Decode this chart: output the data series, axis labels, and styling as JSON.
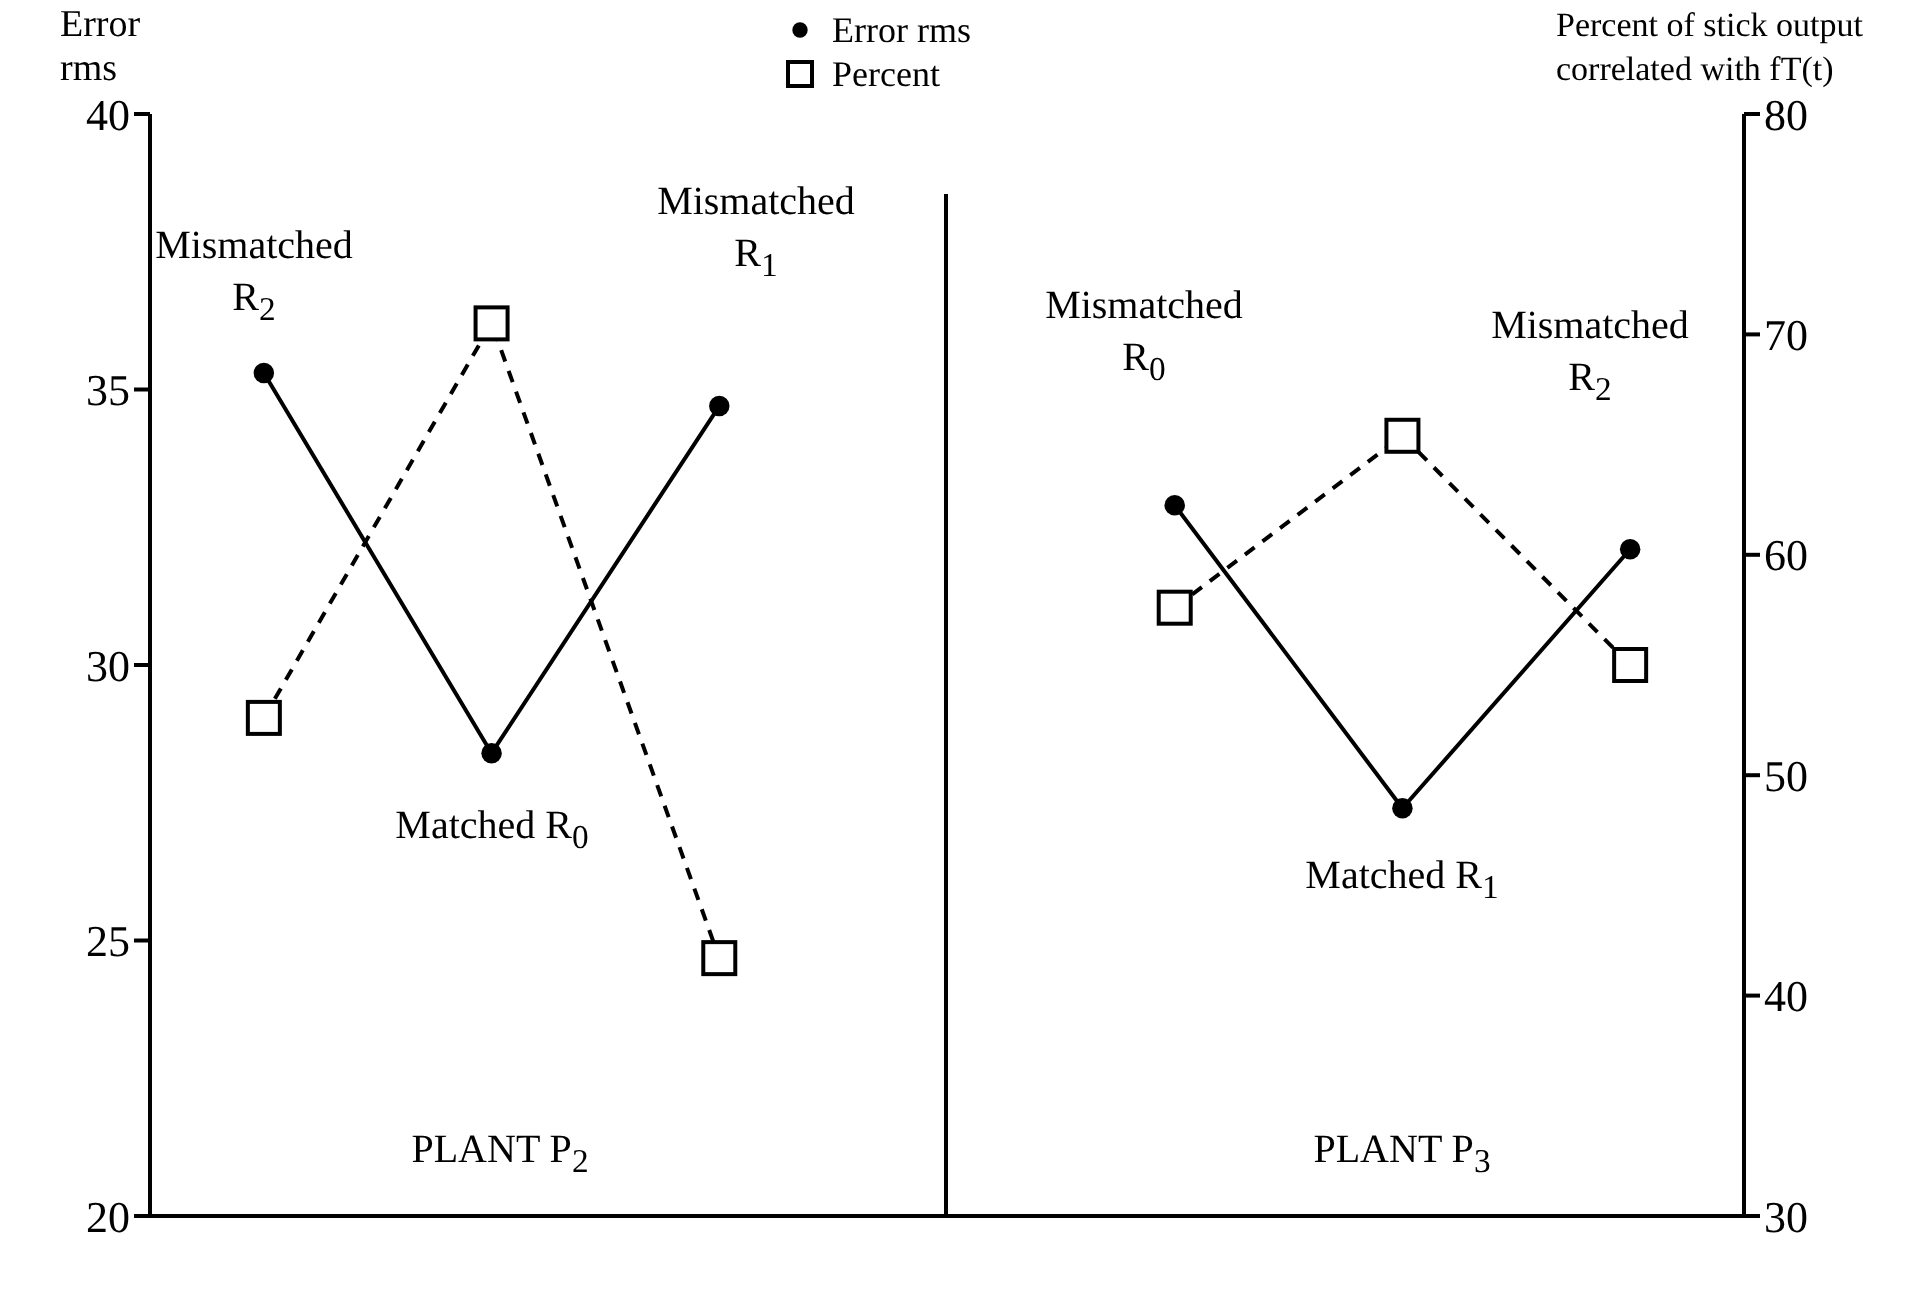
{
  "chart_data": {
    "type": "line",
    "ylabel": "Error rms",
    "y2label": "Percent of stick output correlated with fT(t)",
    "categories": [
      null,
      null,
      null,
      null,
      null,
      null,
      null
    ],
    "legend": "top",
    "series": [
      {
        "name": "Error rms",
        "color": "#000000",
        "marker": "circle",
        "line_style": "solid",
        "values": [
          35.3,
          28.4,
          34.7,
          null,
          32.9,
          27.4,
          32.1
        ]
      },
      {
        "name": "Percent",
        "color": "#000000",
        "marker": "square",
        "line_style": "dashed",
        "axis": "y2",
        "values": [
          52.6,
          70.5,
          41.7,
          null,
          57.6,
          65.4,
          55.0
        ]
      }
    ],
    "ylim": [
      20,
      40
    ],
    "yticks": [
      20,
      25,
      30,
      35,
      40
    ],
    "y2lim": [
      30,
      80
    ],
    "y2ticks": [
      30,
      40,
      50,
      60,
      70,
      80
    ],
    "annotations": [
      "Mismatched R$_{2}$",
      "Matched R$_{0}$",
      "Mismatched R$_{1}$",
      "PLANT P$_{2}$",
      "Mismatched R$_{0}$",
      "Matched R$_{1}$",
      "Mismatched R$_{2}$",
      "PLANT P$_{3}$"
    ]
  }
}
